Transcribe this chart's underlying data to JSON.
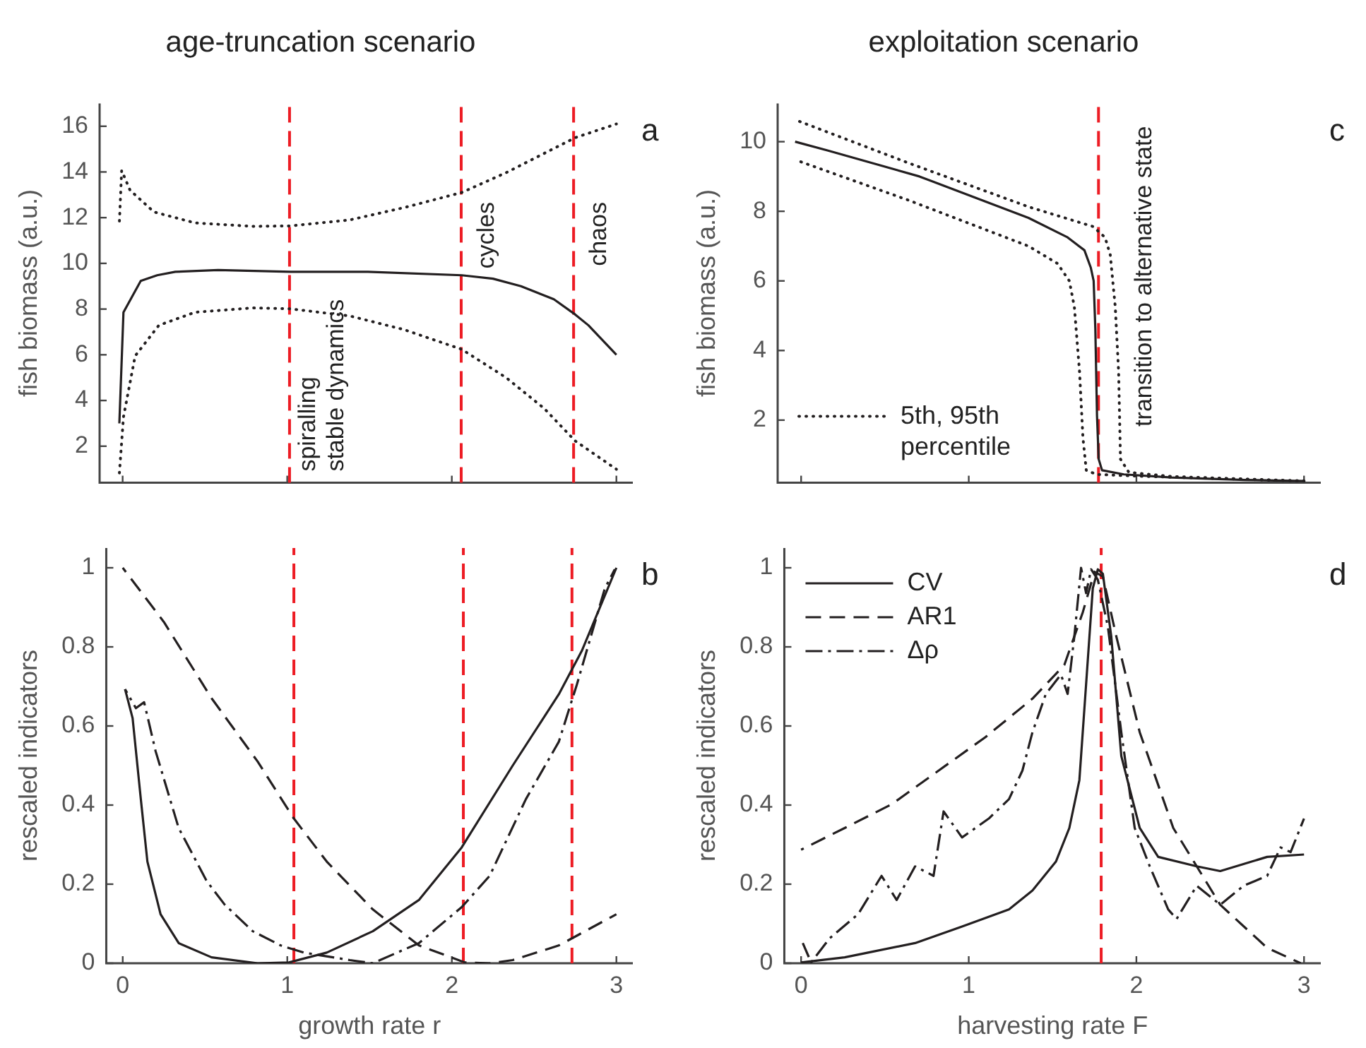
{
  "chart_data": [
    {
      "type": "line",
      "title": "age-truncation scenario",
      "ylabel": "fish biomass (a.u.)",
      "xlim": [
        -0.14,
        3.1
      ],
      "ylim": [
        0.4,
        17
      ],
      "xticks": [
        0,
        1,
        2,
        3
      ],
      "yticks": [
        2,
        4,
        6,
        8,
        10,
        12,
        14,
        16
      ],
      "tick_labels": "y",
      "grid": false,
      "legend": false,
      "marker": "none",
      "series": [
        {
          "color": "#231f20",
          "line_style": "solid",
          "x": [
            -0.02,
            0.005,
            0.11,
            0.21,
            0.32,
            0.58,
            1.02,
            1.49,
            2.06,
            2.25,
            2.42,
            2.62,
            2.75,
            2.83,
            3.0
          ],
          "values": [
            3.0,
            7.86,
            9.23,
            9.48,
            9.63,
            9.71,
            9.63,
            9.63,
            9.48,
            9.33,
            9.0,
            8.43,
            7.76,
            7.29,
            6.0
          ]
        },
        {
          "color": "#231f20",
          "line_style": "dotted",
          "x": [
            -0.02,
            -0.006,
            0.045,
            0.19,
            0.44,
            0.79,
            1.02,
            1.38,
            1.71,
            2.06,
            2.33,
            2.75,
            3.0
          ],
          "values": [
            11.77,
            14.06,
            13.2,
            12.25,
            11.77,
            11.62,
            11.64,
            11.9,
            12.44,
            13.1,
            13.97,
            15.5,
            16.1
          ]
        },
        {
          "color": "#231f20",
          "line_style": "dotted",
          "x": [
            -0.02,
            0.005,
            0.076,
            0.22,
            0.44,
            0.79,
            1.02,
            1.38,
            1.71,
            2.06,
            2.33,
            2.56,
            2.75,
            3.0
          ],
          "values": [
            0.8,
            3.28,
            5.95,
            7.29,
            7.86,
            8.05,
            8.01,
            7.7,
            7.1,
            6.24,
            5.0,
            3.66,
            2.23,
            0.99
          ]
        }
      ],
      "ref_lines": [
        {
          "axis": "x",
          "value": 1.014,
          "color": "#ed1c24",
          "line_style": "dashed",
          "label": "spiralling"
        },
        {
          "axis": "x",
          "value": 2.057,
          "color": "#ed1c24",
          "line_style": "dashed",
          "label": "cycles"
        },
        {
          "axis": "x",
          "value": 2.74,
          "color": "#ed1c24",
          "line_style": "dashed",
          "label": "chaos"
        }
      ],
      "annotations": [
        "a",
        "stable dynamics"
      ]
    },
    {
      "type": "line",
      "title": "exploitation scenario",
      "ylabel": "fish biomass (a.u.)",
      "xlim": [
        -0.14,
        3.1
      ],
      "ylim": [
        0.2,
        11.1
      ],
      "xticks": [
        0,
        1,
        2,
        3
      ],
      "yticks": [
        2,
        4,
        6,
        8,
        10
      ],
      "tick_labels": "y",
      "grid": false,
      "legend": "bottom left",
      "marker": "none",
      "series": [
        {
          "color": "#231f20",
          "line_style": "solid",
          "x": [
            -0.036,
            0.157,
            0.706,
            0.99,
            1.356,
            1.59,
            1.69,
            1.728,
            1.745,
            1.755,
            1.765,
            1.775,
            1.795,
            1.925,
            2.21,
            2.646,
            3.0
          ],
          "values": [
            10,
            9.75,
            9.0,
            8.48,
            7.81,
            7.25,
            6.88,
            6.38,
            6.0,
            4.63,
            2.13,
            0.88,
            0.56,
            0.44,
            0.35,
            0.28,
            0.25
          ]
        },
        {
          "name": "5th, 95th percentile",
          "color": "#231f20",
          "line_style": "dotted",
          "x": [
            -0.036,
            0.645,
            1.356,
            1.742,
            1.813,
            1.844,
            1.874,
            1.894,
            1.905,
            1.955,
            2.21,
            3.0
          ],
          "values": [
            10.63,
            9.38,
            8.13,
            7.56,
            7.25,
            6.75,
            5.25,
            3.38,
            0.88,
            0.5,
            0.38,
            0.25
          ]
        },
        {
          "color": "#231f20",
          "line_style": "dotted",
          "x": [
            -0.036,
            0.645,
            1.356,
            1.529,
            1.6,
            1.63,
            1.661,
            1.681,
            1.701,
            1.762,
            2.067,
            3.0
          ],
          "values": [
            9.48,
            8.31,
            7.0,
            6.5,
            6.0,
            5.25,
            3.38,
            1.5,
            0.56,
            0.44,
            0.38,
            0.25
          ]
        }
      ],
      "ref_lines": [
        {
          "axis": "x",
          "value": 1.774,
          "color": "#ed1c24",
          "line_style": "dashed",
          "label": "transition to alternative state"
        }
      ],
      "annotations": [
        "c"
      ]
    },
    {
      "type": "line",
      "xlabel": "growth rate r",
      "ylabel": "rescaled indicators",
      "xlim": [
        -0.1,
        3.1
      ],
      "ylim": [
        0,
        1.05
      ],
      "xticks": [
        0,
        1,
        2,
        3
      ],
      "yticks": [
        0,
        0.2,
        0.4,
        0.6,
        0.8,
        1
      ],
      "grid": false,
      "legend": false,
      "marker": "none",
      "series": [
        {
          "color": "#231f20",
          "line_style": "solid",
          "x": [
            0.014,
            0.06,
            0.11,
            0.15,
            0.23,
            0.34,
            0.54,
            0.82,
            1.01,
            1.24,
            1.52,
            1.8,
            2.06,
            2.37,
            2.65,
            2.79,
            3.0
          ],
          "values": [
            0.693,
            0.62,
            0.415,
            0.257,
            0.124,
            0.051,
            0.015,
            0,
            0.002,
            0.027,
            0.081,
            0.16,
            0.293,
            0.5,
            0.68,
            0.79,
            1.0
          ]
        },
        {
          "color": "#231f20",
          "line_style": "dashed",
          "x": [
            0,
            0.25,
            0.54,
            0.82,
            1.04,
            1.24,
            1.52,
            1.8,
            2.08,
            2.23,
            2.37,
            2.65,
            3.0
          ],
          "values": [
            1.0,
            0.863,
            0.67,
            0.51,
            0.366,
            0.257,
            0.136,
            0.045,
            0.002,
            0,
            0.008,
            0.045,
            0.124
          ]
        },
        {
          "color": "#231f20",
          "line_style": "dashdot",
          "x": [
            0.014,
            0.08,
            0.13,
            0.2,
            0.34,
            0.51,
            0.62,
            0.79,
            0.96,
            1.1,
            1.38,
            1.52,
            1.8,
            2.06,
            2.23,
            2.45,
            2.65,
            2.76,
            2.93,
            2.99
          ],
          "values": [
            0.693,
            0.645,
            0.66,
            0.536,
            0.342,
            0.208,
            0.148,
            0.081,
            0.045,
            0.027,
            0.008,
            0,
            0.051,
            0.142,
            0.221,
            0.415,
            0.56,
            0.705,
            0.948,
            0.996
          ]
        }
      ],
      "ref_lines": [
        {
          "axis": "x",
          "value": 1.04,
          "color": "#ed1c24",
          "line_style": "dashed"
        },
        {
          "axis": "x",
          "value": 2.07,
          "color": "#ed1c24",
          "line_style": "dashed"
        },
        {
          "axis": "x",
          "value": 2.73,
          "color": "#ed1c24",
          "line_style": "dashed"
        }
      ],
      "annotations": [
        "b"
      ]
    },
    {
      "type": "line",
      "xlabel": "harvesting rate F",
      "ylabel": "rescaled indicators",
      "xlim": [
        -0.1,
        3.1
      ],
      "ylim": [
        0,
        1.05
      ],
      "xticks": [
        0,
        1,
        2,
        3
      ],
      "yticks": [
        0,
        0.2,
        0.4,
        0.6,
        0.8,
        1
      ],
      "grid": false,
      "legend": "top left",
      "marker": "none",
      "series": [
        {
          "name": "CV",
          "color": "#231f20",
          "line_style": "solid",
          "x": [
            0,
            0.26,
            0.4,
            0.68,
            0.96,
            1.24,
            1.38,
            1.52,
            1.6,
            1.66,
            1.7,
            1.74,
            1.77,
            1.8,
            1.85,
            1.91,
            2.02,
            2.13,
            2.36,
            2.5,
            2.78,
            3.0
          ],
          "values": [
            0.002,
            0.015,
            0.027,
            0.051,
            0.093,
            0.136,
            0.184,
            0.257,
            0.342,
            0.463,
            0.705,
            0.948,
            0.996,
            0.985,
            0.827,
            0.524,
            0.342,
            0.269,
            0.245,
            0.233,
            0.269,
            0.275
          ]
        },
        {
          "name": "AR1",
          "color": "#231f20",
          "line_style": "dashed",
          "x": [
            0,
            0.26,
            0.54,
            0.82,
            1.1,
            1.38,
            1.57,
            1.68,
            1.75,
            1.8,
            1.88,
            2.02,
            2.22,
            2.5,
            2.78,
            2.98
          ],
          "values": [
            0.287,
            0.342,
            0.402,
            0.487,
            0.572,
            0.669,
            0.754,
            0.887,
            0.99,
            0.978,
            0.827,
            0.584,
            0.342,
            0.148,
            0.039,
            0
          ]
        },
        {
          "name": "Δρ",
          "color": "#231f20",
          "line_style": "dashdot",
          "x": [
            0.01,
            0.06,
            0.17,
            0.34,
            0.48,
            0.57,
            0.68,
            0.79,
            0.85,
            0.96,
            1.12,
            1.24,
            1.32,
            1.38,
            1.46,
            1.55,
            1.59,
            1.63,
            1.67,
            1.7,
            1.73,
            1.77,
            1.83,
            1.91,
            1.99,
            2.08,
            2.19,
            2.24,
            2.36,
            2.5,
            2.64,
            2.78,
            2.86,
            2.92,
            3.0
          ],
          "values": [
            0.051,
            0.002,
            0.063,
            0.124,
            0.221,
            0.16,
            0.245,
            0.221,
            0.384,
            0.318,
            0.366,
            0.415,
            0.487,
            0.584,
            0.681,
            0.73,
            0.681,
            0.827,
            1.0,
            0.936,
            0.996,
            0.97,
            0.851,
            0.584,
            0.342,
            0.245,
            0.136,
            0.112,
            0.196,
            0.148,
            0.196,
            0.221,
            0.293,
            0.281,
            0.366
          ]
        }
      ],
      "ref_lines": [
        {
          "axis": "x",
          "value": 1.79,
          "color": "#ed1c24",
          "line_style": "dashed"
        }
      ],
      "annotations": [
        "d"
      ]
    }
  ]
}
